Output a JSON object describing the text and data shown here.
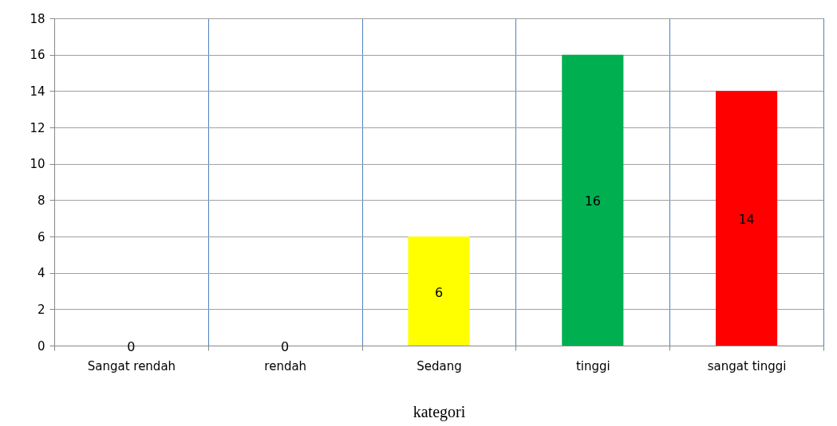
{
  "chart_data": {
    "type": "bar",
    "xlabel": "kategori",
    "categories": [
      "Sangat rendah",
      "rendah",
      "Sedang",
      "tinggi",
      "sangat tinggi"
    ],
    "values": [
      0,
      0,
      6,
      16,
      14
    ],
    "colors": [
      "#ffff00",
      "#ffff00",
      "#ffff00",
      "#00b050",
      "#ff0000"
    ],
    "ylim": [
      0,
      18
    ],
    "yticks": [
      0,
      2,
      4,
      6,
      8,
      10,
      12,
      14,
      16,
      18
    ],
    "grid": true,
    "data_labels": true
  }
}
